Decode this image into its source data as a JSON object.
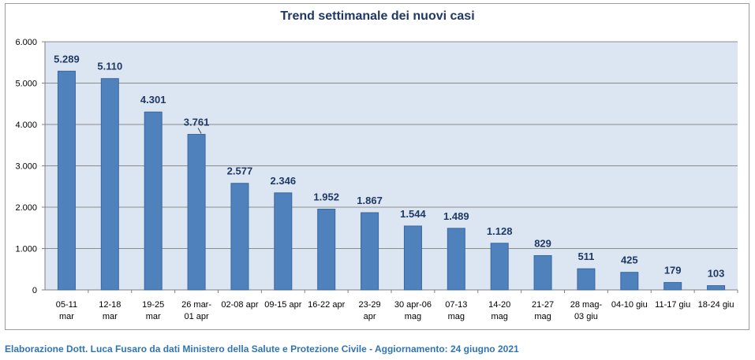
{
  "chart_data": {
    "type": "bar",
    "title": "Trend settimanale dei nuovi casi",
    "categories": [
      [
        "05-11",
        "mar"
      ],
      [
        "12-18",
        "mar"
      ],
      [
        "19-25",
        "mar"
      ],
      [
        "26 mar-",
        "01 apr"
      ],
      [
        "02-08 apr"
      ],
      [
        "09-15 apr"
      ],
      [
        "16-22 apr"
      ],
      [
        "23-29",
        "apr"
      ],
      [
        "30 apr-06",
        "mag"
      ],
      [
        "07-13",
        "mag"
      ],
      [
        "14-20",
        "mag"
      ],
      [
        "21-27",
        "mag"
      ],
      [
        "28 mag-",
        "03 giu"
      ],
      [
        "04-10 giu"
      ],
      [
        "11-17 giu"
      ],
      [
        "18-24 giu"
      ]
    ],
    "values": [
      5289,
      5110,
      4301,
      3761,
      2577,
      2346,
      1952,
      1867,
      1544,
      1489,
      1128,
      829,
      511,
      425,
      179,
      103
    ],
    "value_labels": [
      "5.289",
      "5.110",
      "4.301",
      "3.761",
      "2.577",
      "2.346",
      "1.952",
      "1.867",
      "1.544",
      "1.489",
      "1.128",
      "829",
      "511",
      "425",
      "179",
      "103"
    ],
    "ylim": [
      0,
      6000
    ],
    "yticks": [
      0,
      1000,
      2000,
      3000,
      4000,
      5000,
      6000
    ],
    "ytick_labels": [
      "0",
      "1.000",
      "2.000",
      "3.000",
      "4.000",
      "5.000",
      "6.000"
    ],
    "xlabel": "",
    "ylabel": "",
    "grid": true,
    "legend": "none",
    "colors": {
      "bar": "#4f81bd",
      "bar_edge": "#3a679e",
      "plot_bg": "#dce6f2",
      "grid": "#8c8c8c",
      "label": "#1f3864"
    }
  },
  "footer": "Elaborazione Dott. Luca Fusaro da dati Ministero della Salute e Protezione Civile - Aggiornamento: 24 giugno 2021"
}
